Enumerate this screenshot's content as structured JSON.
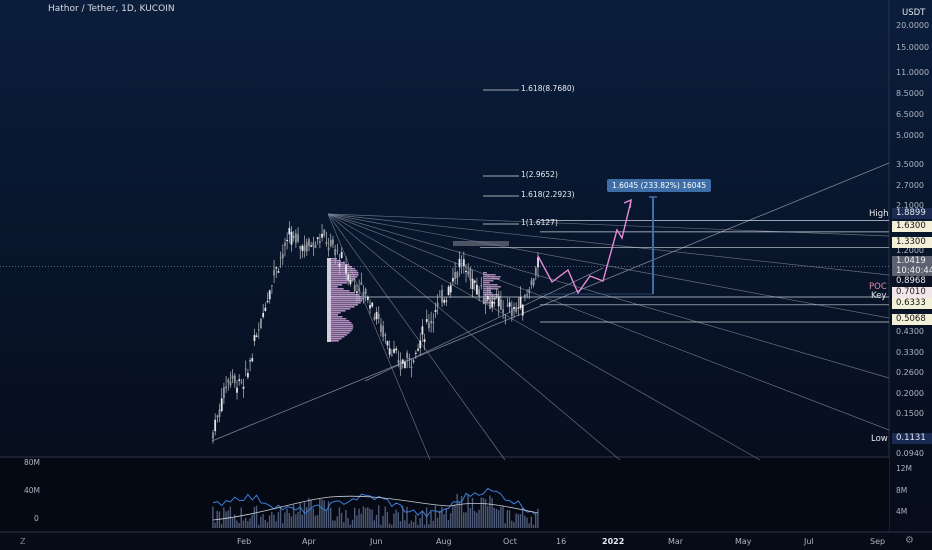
{
  "header": {
    "title": "Hathor / Tether, 1D, KUCOIN",
    "currency": "USDT"
  },
  "price_axis": {
    "ticks": [
      "20.0000",
      "15.0000",
      "11.0000",
      "8.5000",
      "6.5000",
      "5.0000",
      "3.5000",
      "2.7000",
      "2.1000",
      "1.2000",
      "0.4300",
      "0.3300",
      "0.2600",
      "0.2000",
      "0.1500",
      "0.0940"
    ],
    "tags": {
      "high_label": "High",
      "high": "1.8899",
      "target1": "1.6300",
      "target2": "1.3300",
      "last_price": "1.0419",
      "countdown": "10:40:44",
      "level_1": "0.8968",
      "poc_label": "POC",
      "key_label": "Key",
      "poc": "0.7010",
      "key": "0.6333",
      "support": "0.5068",
      "low_label": "Low",
      "low": "0.1131"
    }
  },
  "fib_labels": [
    "1.618(8.7680)",
    "1(2.9652)",
    "1.618(2.2923)",
    "1(1.6127)"
  ],
  "projection_label": "1.6045 (233.82%) 16045",
  "time_axis": {
    "ticks": [
      "Feb",
      "Apr",
      "Jun",
      "Aug",
      "Oct",
      "16",
      "2022",
      "Mar",
      "May",
      "Jul",
      "Sep"
    ],
    "bold_tick": "2022"
  },
  "volume_axis": {
    "left_ticks": [
      "80M",
      "40M",
      "0"
    ],
    "right_ticks": [
      "12M",
      "8M",
      "4M"
    ]
  },
  "corners": {
    "left_label": "Z",
    "right_icon": "gear-icon"
  },
  "colors": {
    "background": "#0a0f1e",
    "candles": "#b9bcc4",
    "volume_profile": "#e7b6ee",
    "projection_path": "#e88cd8",
    "measure_bar": "#3d6ea8",
    "trendlines": "#7d8494",
    "volume_line": "#3d7ed8"
  },
  "chart_data": {
    "type": "candlestick",
    "title": "Hathor / Tether, 1D, KUCOIN",
    "scale": "log",
    "x": [
      "Feb",
      "Apr",
      "Jun",
      "Aug",
      "Oct",
      "16",
      "2022",
      "Mar",
      "May",
      "Jul",
      "Sep"
    ],
    "ylim": [
      0.094,
      25
    ],
    "price_path": [
      {
        "month": "Jan",
        "price": 0.12
      },
      {
        "month": "Jan",
        "price": 0.25
      },
      {
        "month": "Feb",
        "price": 0.22
      },
      {
        "month": "Mar",
        "price": 0.48
      },
      {
        "month": "Mar",
        "price": 1.0
      },
      {
        "month": "Apr",
        "price": 1.52
      },
      {
        "month": "Apr",
        "price": 1.35
      },
      {
        "month": "Apr",
        "price": 1.55
      },
      {
        "month": "May",
        "price": 1.25
      },
      {
        "month": "May",
        "price": 0.85
      },
      {
        "month": "May",
        "price": 0.72
      },
      {
        "month": "Jun",
        "price": 0.45
      },
      {
        "month": "Jul",
        "price": 0.29
      },
      {
        "month": "Jul",
        "price": 0.33
      },
      {
        "month": "Aug",
        "price": 0.52
      },
      {
        "month": "Aug",
        "price": 0.72
      },
      {
        "month": "Sep",
        "price": 1.1
      },
      {
        "month": "Sep",
        "price": 0.82
      },
      {
        "month": "Sep",
        "price": 0.67
      },
      {
        "month": "Oct",
        "price": 0.58
      },
      {
        "month": "Oct",
        "price": 0.63
      },
      {
        "month": "Oct",
        "price": 1.04
      }
    ],
    "levels": {
      "high": 1.8899,
      "low": 0.1131,
      "poc": 0.701,
      "key": 0.6333,
      "support": 0.5068,
      "last": 1.0419
    },
    "projection": {
      "target": 1.6045,
      "change_pct": 233.82
    },
    "volume_ticks": [
      "80M",
      "40M",
      "0"
    ]
  }
}
